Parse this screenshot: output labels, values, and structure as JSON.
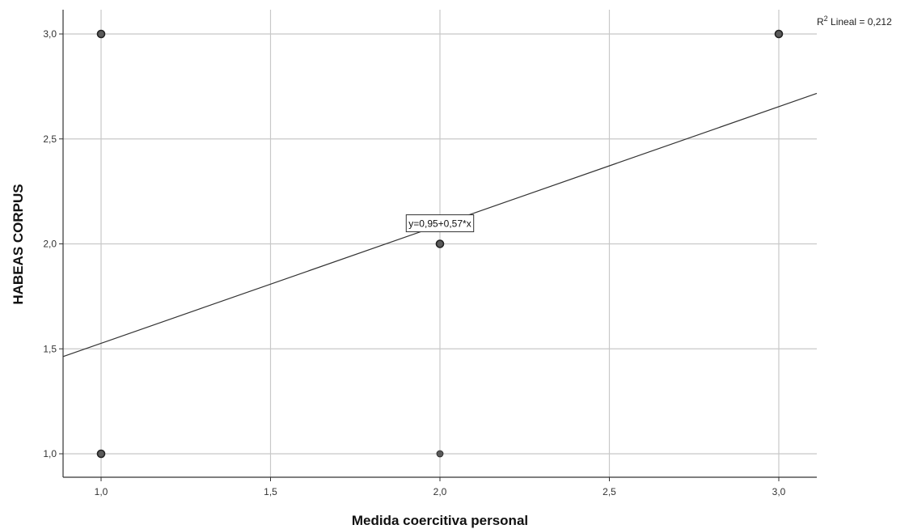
{
  "chart_data": {
    "type": "scatter",
    "title": "",
    "xlabel": "Medida coercitiva personal",
    "ylabel": "HABEAS CORPUS",
    "xlim": [
      0.9,
      3.1
    ],
    "ylim": [
      0.9,
      3.1
    ],
    "xticks": [
      "1,0",
      "1,5",
      "2,0",
      "2,5",
      "3,0"
    ],
    "yticks": [
      "1,0",
      "1,5",
      "2,0",
      "2,5",
      "3,0"
    ],
    "grid": true,
    "points": [
      {
        "x": 1.0,
        "y": 3.0,
        "bold": true
      },
      {
        "x": 3.0,
        "y": 3.0,
        "bold": true
      },
      {
        "x": 2.0,
        "y": 2.0,
        "bold": true
      },
      {
        "x": 1.0,
        "y": 1.0,
        "bold": true
      },
      {
        "x": 2.0,
        "y": 1.0,
        "bold": false
      }
    ],
    "fit_line": {
      "intercept": 0.95,
      "slope": 0.57,
      "equation_label": "y=0,95+0,57*x",
      "label_anchor": {
        "x": 2.0,
        "y": 2.1
      }
    },
    "r2": {
      "prefix": "R",
      "superscript": "2",
      "text": " Lineal = 0,212"
    },
    "colors": {
      "grid": "#c8c8c8",
      "axis": "#333333",
      "point_fill": "#5a5a5a",
      "point_stroke": "#222222",
      "line": "#333333"
    }
  }
}
